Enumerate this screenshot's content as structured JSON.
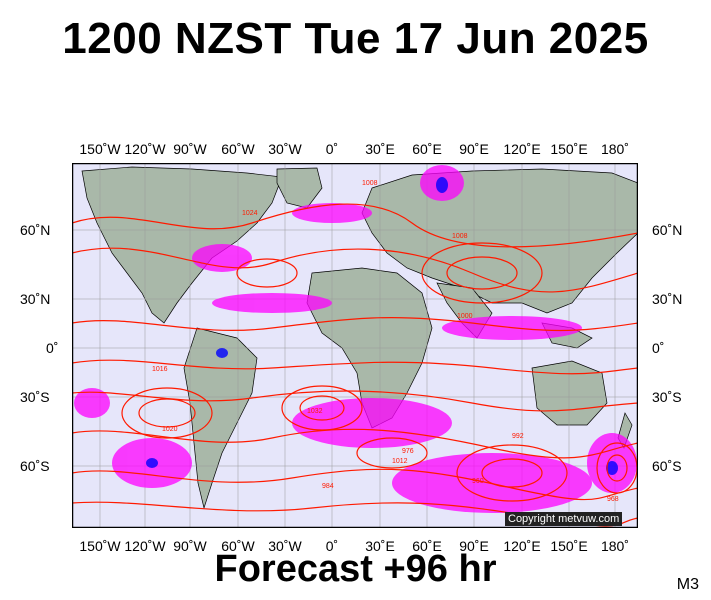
{
  "title": "1200 NZST Tue 17 Jun 2025",
  "footer": "Forecast +96 hr",
  "code": "M3",
  "copyright": "Copyright metvuw.com",
  "lon_labels": [
    "150˚W",
    "120˚W",
    "90˚W",
    "60˚W",
    "30˚W",
    "0˚",
    "30˚E",
    "60˚E",
    "90˚E",
    "120˚E",
    "150˚E",
    "180˚"
  ],
  "lat_labels": [
    "60˚N",
    "30˚N",
    "0˚",
    "30˚S",
    "60˚S"
  ],
  "isobar_labels": [
    "1008",
    "1024",
    "1016",
    "1000",
    "1020",
    "1032",
    "1012",
    "1008",
    "976",
    "992",
    "984",
    "968",
    "960"
  ],
  "colors": {
    "ocean": "#e6e6fa",
    "land": "#a9b8a9",
    "isobar": "#ff1a00",
    "rain_light": "#ff00ff",
    "rain_heavy": "#0000ff",
    "grid": "#999999"
  }
}
